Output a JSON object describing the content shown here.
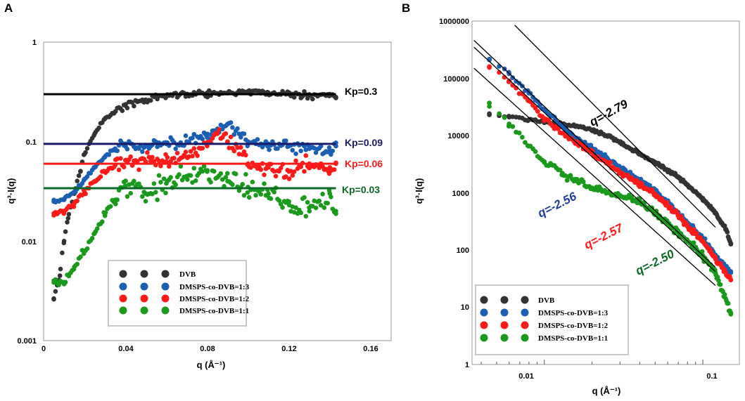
{
  "panels": [
    {
      "letter": "A",
      "xlabel": "q (Å⁻¹)",
      "ylabel": "q³·I(q)",
      "x_ticks": [
        "0",
        "0.04",
        "0.08",
        "0.12",
        "0.16"
      ],
      "y_ticks": [
        "1",
        "0.1",
        "0.01",
        "0.001"
      ],
      "legend": [
        "DVB",
        "DMSPS-co-DVB=1:3",
        "DMSPS-co-DVB=1:2",
        "DMSPS-co-DVB=1:1"
      ],
      "annotations": [
        "Kp=0.3",
        "Kp=0.09",
        "Kp=0.06",
        "Kp=0.03"
      ]
    },
    {
      "letter": "B",
      "xlabel": "q (Å⁻¹)",
      "ylabel": "q³·I(q)",
      "x_ticks": [
        "0.01",
        "0.1"
      ],
      "y_ticks": [
        "1000000",
        "100000",
        "10000",
        "1000",
        "100",
        "10",
        "1"
      ],
      "legend": [
        "DVB",
        "DMSPS-co-DVB=1:3",
        "DMSPS-co-DVB=1:2",
        "DMSPS-co-DVB=1:1"
      ],
      "annotations": [
        "q=-2.79",
        "q=-2.56",
        "q=-2.57",
        "q=-2.50"
      ]
    }
  ],
  "colors": {
    "dvb": "#333333",
    "ratio13": "#1a5fb4",
    "ratio12": "#ff1a1a",
    "ratio11": "#1a9a1a",
    "kp03": "#000000",
    "kp009": "#1b1b6b",
    "kp006": "#ff1a1a",
    "kp003": "#0b6a25",
    "slope279": "#000000",
    "slope256": "#1f3ea0",
    "slope257": "#ff1a1a",
    "slope250": "#0b6a25"
  },
  "chart_data": [
    {
      "type": "scatter",
      "panel": "A",
      "title": "",
      "xlabel": "q (Å⁻¹)",
      "ylabel": "q³·I(q)",
      "xlim": [
        0,
        0.17
      ],
      "ylim": [
        0.001,
        1
      ],
      "yscale": "log",
      "grid": false,
      "legend_position": "bottom-center",
      "series": [
        {
          "name": "DVB",
          "x": [
            0.005,
            0.008,
            0.01,
            0.012,
            0.015,
            0.018,
            0.02,
            0.025,
            0.03,
            0.035,
            0.04,
            0.05,
            0.06,
            0.07,
            0.08,
            0.09,
            0.1,
            0.11,
            0.12,
            0.13,
            0.14,
            0.143
          ],
          "y": [
            0.0026,
            0.0045,
            0.01,
            0.017,
            0.03,
            0.05,
            0.075,
            0.12,
            0.17,
            0.2,
            0.23,
            0.26,
            0.29,
            0.3,
            0.31,
            0.31,
            0.32,
            0.31,
            0.3,
            0.29,
            0.3,
            0.28
          ]
        },
        {
          "name": "DMSPS-co-DVB=1:3",
          "x": [
            0.005,
            0.01,
            0.015,
            0.02,
            0.025,
            0.03,
            0.035,
            0.04,
            0.05,
            0.06,
            0.07,
            0.08,
            0.085,
            0.09,
            0.1,
            0.11,
            0.12,
            0.13,
            0.14,
            0.143
          ],
          "y": [
            0.025,
            0.026,
            0.031,
            0.042,
            0.055,
            0.07,
            0.085,
            0.095,
            0.09,
            0.095,
            0.1,
            0.11,
            0.13,
            0.15,
            0.1,
            0.095,
            0.09,
            0.085,
            0.08,
            0.09
          ]
        },
        {
          "name": "DMSPS-co-DVB=1:2",
          "x": [
            0.005,
            0.01,
            0.015,
            0.02,
            0.025,
            0.03,
            0.035,
            0.04,
            0.05,
            0.06,
            0.07,
            0.08,
            0.085,
            0.09,
            0.1,
            0.11,
            0.12,
            0.13,
            0.14,
            0.143
          ],
          "y": [
            0.019,
            0.02,
            0.024,
            0.031,
            0.04,
            0.05,
            0.058,
            0.065,
            0.062,
            0.063,
            0.07,
            0.09,
            0.12,
            0.1,
            0.06,
            0.055,
            0.05,
            0.06,
            0.055,
            0.06
          ]
        },
        {
          "name": "DMSPS-co-DVB=1:1",
          "x": [
            0.005,
            0.01,
            0.015,
            0.02,
            0.025,
            0.03,
            0.035,
            0.04,
            0.05,
            0.06,
            0.07,
            0.08,
            0.09,
            0.1,
            0.11,
            0.12,
            0.13,
            0.14,
            0.143
          ],
          "y": [
            0.004,
            0.0037,
            0.0055,
            0.008,
            0.012,
            0.018,
            0.026,
            0.036,
            0.03,
            0.038,
            0.045,
            0.05,
            0.04,
            0.035,
            0.03,
            0.025,
            0.02,
            0.03,
            0.02
          ]
        }
      ],
      "reference_lines": [
        {
          "label": "Kp=0.3",
          "y": 0.3,
          "x_range": [
            0,
            0.143
          ]
        },
        {
          "label": "Kp=0.09",
          "y": 0.095,
          "x_range": [
            0,
            0.143
          ]
        },
        {
          "label": "Kp=0.06",
          "y": 0.06,
          "x_range": [
            0,
            0.143
          ]
        },
        {
          "label": "Kp=0.03",
          "y": 0.034,
          "x_range": [
            0,
            0.143
          ]
        }
      ]
    },
    {
      "type": "scatter",
      "panel": "B",
      "title": "",
      "xlabel": "q (Å⁻¹)",
      "ylabel": "q³·I(q)",
      "xscale": "log",
      "yscale": "log",
      "xlim": [
        0.0035,
        0.17
      ],
      "ylim": [
        1,
        1000000
      ],
      "grid": false,
      "legend_position": "bottom-left",
      "series": [
        {
          "name": "DVB",
          "x": [
            0.0045,
            0.006,
            0.008,
            0.01,
            0.013,
            0.016,
            0.02,
            0.025,
            0.03,
            0.04,
            0.05,
            0.06,
            0.07,
            0.08,
            0.1,
            0.12,
            0.14,
            0.15
          ],
          "y": [
            23000,
            21000,
            19000,
            17500,
            16000,
            14500,
            12500,
            10000,
            7500,
            4800,
            3400,
            2500,
            1900,
            1350,
            800,
            450,
            230,
            130
          ]
        },
        {
          "name": "DMSPS-co-DVB=1:3",
          "x": [
            0.0045,
            0.006,
            0.008,
            0.01,
            0.013,
            0.016,
            0.02,
            0.025,
            0.03,
            0.04,
            0.05,
            0.06,
            0.07,
            0.08,
            0.1,
            0.12,
            0.15
          ],
          "y": [
            210000,
            120000,
            55000,
            28000,
            14000,
            9000,
            6000,
            4000,
            2700,
            1700,
            1100,
            700,
            450,
            300,
            160,
            80,
            40
          ]
        },
        {
          "name": "DMSPS-co-DVB=1:2",
          "x": [
            0.0045,
            0.006,
            0.008,
            0.01,
            0.013,
            0.016,
            0.02,
            0.025,
            0.03,
            0.04,
            0.05,
            0.06,
            0.07,
            0.08,
            0.1,
            0.12,
            0.15
          ],
          "y": [
            160000,
            90000,
            40000,
            20000,
            11000,
            7500,
            5000,
            3400,
            2300,
            1400,
            950,
            600,
            400,
            260,
            140,
            70,
            30
          ]
        },
        {
          "name": "DMSPS-co-DVB=1:1",
          "x": [
            0.0045,
            0.006,
            0.008,
            0.01,
            0.013,
            0.016,
            0.02,
            0.025,
            0.03,
            0.04,
            0.05,
            0.06,
            0.07,
            0.08,
            0.1,
            0.12,
            0.15
          ],
          "y": [
            37000,
            16000,
            6500,
            3500,
            2200,
            1600,
            1200,
            1000,
            900,
            700,
            450,
            300,
            200,
            140,
            80,
            40,
            8
          ]
        }
      ],
      "fit_lines": [
        {
          "label": "q=-2.79",
          "slope": -2.79,
          "from": [
            0.0065,
            850000
          ],
          "to": [
            0.12,
            250
          ]
        },
        {
          "label": "q=-2.56",
          "slope": -2.56,
          "from": [
            0.0036,
            460000
          ],
          "to": [
            0.12,
            50
          ]
        },
        {
          "label": "q=-2.57",
          "slope": -2.57,
          "from": [
            0.0036,
            350000
          ],
          "to": [
            0.12,
            42
          ]
        },
        {
          "label": "q=-2.50",
          "slope": -2.5,
          "from": [
            0.0036,
            150000
          ],
          "to": [
            0.12,
            24
          ]
        }
      ]
    }
  ]
}
